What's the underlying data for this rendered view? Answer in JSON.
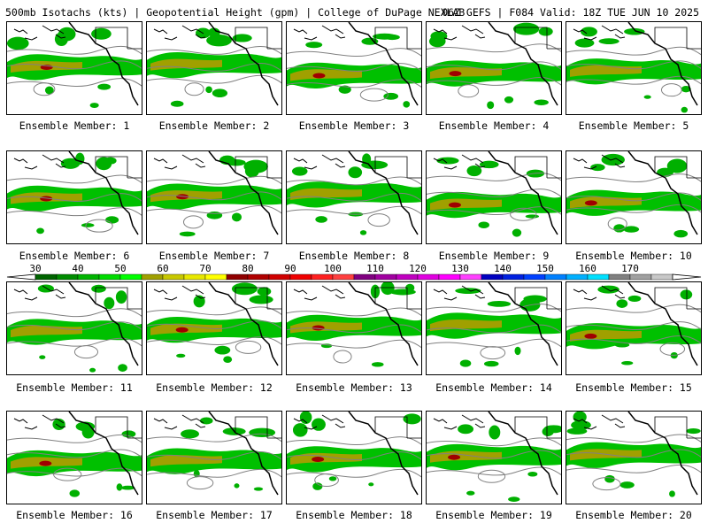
{
  "header": {
    "title": "500mb Isotachs (kts) | Geopotential Height (gpm) | College of DuPage NEXLAB",
    "run_info": "06Z GEFS | F084 Valid: 18Z TUE JUN 10 2025"
  },
  "members": [
    {
      "label": "Ensemble Member: 1"
    },
    {
      "label": "Ensemble Member: 2"
    },
    {
      "label": "Ensemble Member: 3"
    },
    {
      "label": "Ensemble Member: 4"
    },
    {
      "label": "Ensemble Member: 5"
    },
    {
      "label": "Ensemble Member: 6"
    },
    {
      "label": "Ensemble Member: 7"
    },
    {
      "label": "Ensemble Member: 8"
    },
    {
      "label": "Ensemble Member: 9"
    },
    {
      "label": "Ensemble Member: 10"
    },
    {
      "label": "Ensemble Member: 11"
    },
    {
      "label": "Ensemble Member: 12"
    },
    {
      "label": "Ensemble Member: 13"
    },
    {
      "label": "Ensemble Member: 14"
    },
    {
      "label": "Ensemble Member: 15"
    },
    {
      "label": "Ensemble Member: 16"
    },
    {
      "label": "Ensemble Member: 17"
    },
    {
      "label": "Ensemble Member: 18"
    },
    {
      "label": "Ensemble Member: 19"
    },
    {
      "label": "Ensemble Member: 20"
    }
  ],
  "colorbar": {
    "ticks": [
      "30",
      "40",
      "50",
      "60",
      "70",
      "80",
      "90",
      "100",
      "110",
      "120",
      "130",
      "140",
      "150",
      "160",
      "170"
    ],
    "colors": [
      "#006400",
      "#008c00",
      "#00b400",
      "#00dc00",
      "#00ff00",
      "#a0a000",
      "#c8c800",
      "#e8e800",
      "#ffff00",
      "#900000",
      "#b00000",
      "#d00000",
      "#f00000",
      "#ff2020",
      "#ff4040",
      "#800080",
      "#a000a0",
      "#c000c0",
      "#e000e0",
      "#ff00ff",
      "#ff40ff",
      "#0000c0",
      "#0020e0",
      "#0040ff",
      "#0080ff",
      "#00b0ff",
      "#00e0ff",
      "#808080",
      "#a0a0a0",
      "#c8c8c8"
    ]
  }
}
